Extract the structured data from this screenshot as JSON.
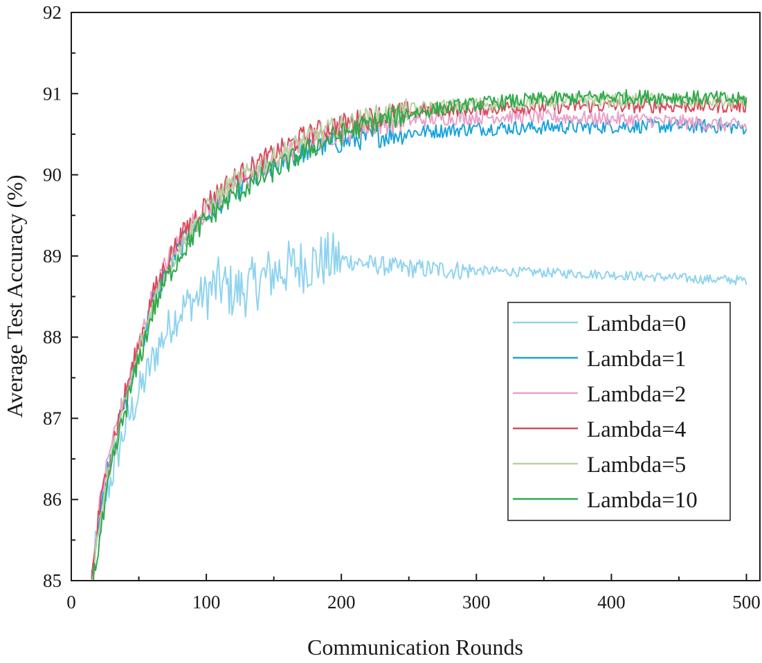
{
  "chart_data": {
    "type": "line",
    "title": "",
    "xlabel": "Communication Rounds",
    "ylabel": "Average Test Accuracy (%)",
    "xlim": [
      0,
      510
    ],
    "ylim": [
      85,
      92
    ],
    "xticks": [
      0,
      100,
      200,
      300,
      400,
      500
    ],
    "yticks": [
      85,
      86,
      87,
      88,
      89,
      90,
      91,
      92
    ],
    "x_tick_labels": [
      "0",
      "100",
      "200",
      "300",
      "400",
      "500"
    ],
    "y_tick_labels": [
      "85",
      "86",
      "87",
      "88",
      "89",
      "90",
      "91",
      "92"
    ],
    "grid": false,
    "legend_position": "lower-right",
    "series": [
      {
        "name": "Lambda=0",
        "color": "#8fd3ef",
        "x": [
          15,
          20,
          25,
          30,
          35,
          40,
          45,
          50,
          55,
          60,
          65,
          70,
          75,
          80,
          85,
          90,
          95,
          100,
          105,
          110,
          120,
          130,
          140,
          150,
          160,
          170,
          180,
          190,
          200,
          210,
          220,
          230,
          240,
          250,
          260,
          280,
          300,
          320,
          340,
          360,
          380,
          400,
          420,
          440,
          460,
          480,
          500
        ],
        "y": [
          85.0,
          85.6,
          86.0,
          86.3,
          86.6,
          86.9,
          87.1,
          87.3,
          87.5,
          87.7,
          87.9,
          88.05,
          88.2,
          88.3,
          88.4,
          88.45,
          88.5,
          88.55,
          88.6,
          88.65,
          88.55,
          88.6,
          88.7,
          88.8,
          88.85,
          88.88,
          88.92,
          88.95,
          88.95,
          88.93,
          88.9,
          88.88,
          88.86,
          88.85,
          88.84,
          88.83,
          88.82,
          88.81,
          88.8,
          88.79,
          88.78,
          88.77,
          88.75,
          88.74,
          88.72,
          88.71,
          88.7
        ]
      },
      {
        "name": "Lambda=1",
        "color": "#1aa3dc",
        "x": [
          15,
          20,
          25,
          30,
          40,
          50,
          60,
          70,
          80,
          90,
          100,
          110,
          120,
          130,
          140,
          150,
          160,
          170,
          180,
          190,
          200,
          210,
          220,
          230,
          240,
          250,
          260,
          270,
          280,
          290,
          300,
          320,
          340,
          360,
          380,
          400,
          420,
          440,
          460,
          480,
          500
        ],
        "y": [
          85.0,
          85.7,
          86.2,
          86.6,
          87.2,
          87.8,
          88.4,
          88.8,
          89.1,
          89.3,
          89.5,
          89.65,
          89.8,
          89.9,
          90.0,
          90.1,
          90.2,
          90.27,
          90.33,
          90.37,
          90.4,
          90.43,
          90.46,
          90.48,
          90.5,
          90.52,
          90.53,
          90.54,
          90.55,
          90.56,
          90.57,
          90.58,
          90.58,
          90.59,
          90.59,
          90.6,
          90.6,
          90.6,
          90.6,
          90.6,
          90.58
        ]
      },
      {
        "name": "Lambda=2",
        "color": "#eaa0c8",
        "x": [
          15,
          20,
          25,
          30,
          40,
          50,
          60,
          70,
          80,
          90,
          100,
          110,
          120,
          130,
          140,
          150,
          160,
          170,
          180,
          190,
          200,
          210,
          220,
          230,
          240,
          250,
          260,
          280,
          300,
          320,
          340,
          360,
          380,
          400,
          420,
          440,
          460,
          480,
          500
        ],
        "y": [
          85.0,
          85.8,
          86.3,
          86.7,
          87.3,
          87.9,
          88.5,
          88.9,
          89.2,
          89.4,
          89.55,
          89.7,
          89.85,
          89.95,
          90.05,
          90.15,
          90.25,
          90.35,
          90.42,
          90.48,
          90.52,
          90.56,
          90.6,
          90.63,
          90.65,
          90.67,
          90.68,
          90.7,
          90.71,
          90.72,
          90.72,
          90.71,
          90.7,
          90.69,
          90.68,
          90.66,
          90.64,
          90.62,
          90.6
        ]
      },
      {
        "name": "Lambda=4",
        "color": "#d94a5c",
        "x": [
          15,
          20,
          25,
          30,
          40,
          50,
          60,
          70,
          80,
          90,
          100,
          110,
          120,
          130,
          140,
          150,
          160,
          170,
          180,
          190,
          200,
          210,
          220,
          230,
          240,
          250,
          260,
          280,
          300,
          320,
          340,
          360,
          380,
          400,
          420,
          440,
          460,
          480,
          500
        ],
        "y": [
          85.0,
          85.75,
          86.25,
          86.65,
          87.3,
          87.9,
          88.5,
          88.9,
          89.2,
          89.45,
          89.65,
          89.8,
          89.95,
          90.05,
          90.15,
          90.25,
          90.35,
          90.45,
          90.52,
          90.58,
          90.62,
          90.66,
          90.7,
          90.73,
          90.75,
          90.77,
          90.79,
          90.81,
          90.82,
          90.83,
          90.84,
          90.84,
          90.85,
          90.85,
          90.85,
          90.85,
          90.85,
          90.85,
          90.85
        ]
      },
      {
        "name": "Lambda=5",
        "color": "#b5d3a3",
        "x": [
          15,
          20,
          25,
          30,
          40,
          50,
          60,
          70,
          80,
          90,
          100,
          110,
          120,
          130,
          140,
          150,
          160,
          170,
          180,
          190,
          200,
          210,
          220,
          230,
          240,
          250,
          260,
          280,
          300,
          320,
          340,
          360,
          380,
          400,
          420,
          440,
          460,
          480,
          500
        ],
        "y": [
          85.0,
          85.6,
          86.1,
          86.5,
          87.2,
          87.8,
          88.4,
          88.8,
          89.1,
          89.35,
          89.55,
          89.75,
          89.9,
          90.0,
          90.1,
          90.2,
          90.3,
          90.4,
          90.48,
          90.55,
          90.6,
          90.65,
          90.7,
          90.74,
          90.77,
          90.8,
          90.82,
          90.85,
          90.87,
          90.89,
          90.9,
          90.91,
          90.92,
          90.92,
          90.92,
          90.92,
          90.91,
          90.9,
          90.88
        ]
      },
      {
        "name": "Lambda=10",
        "color": "#2eaa4a",
        "x": [
          15,
          20,
          25,
          30,
          40,
          50,
          60,
          70,
          80,
          90,
          100,
          110,
          120,
          130,
          140,
          150,
          160,
          170,
          180,
          190,
          200,
          210,
          220,
          230,
          240,
          250,
          260,
          280,
          300,
          320,
          340,
          360,
          380,
          400,
          420,
          440,
          460,
          480,
          500
        ],
        "y": [
          84.9,
          85.4,
          85.9,
          86.4,
          87.1,
          87.7,
          88.3,
          88.7,
          89.0,
          89.25,
          89.45,
          89.6,
          89.75,
          89.85,
          89.95,
          90.05,
          90.15,
          90.25,
          90.35,
          90.43,
          90.5,
          90.56,
          90.62,
          90.67,
          90.71,
          90.75,
          90.78,
          90.83,
          90.87,
          90.9,
          90.92,
          90.94,
          90.95,
          90.96,
          90.96,
          90.96,
          90.95,
          90.94,
          90.92
        ]
      }
    ]
  }
}
